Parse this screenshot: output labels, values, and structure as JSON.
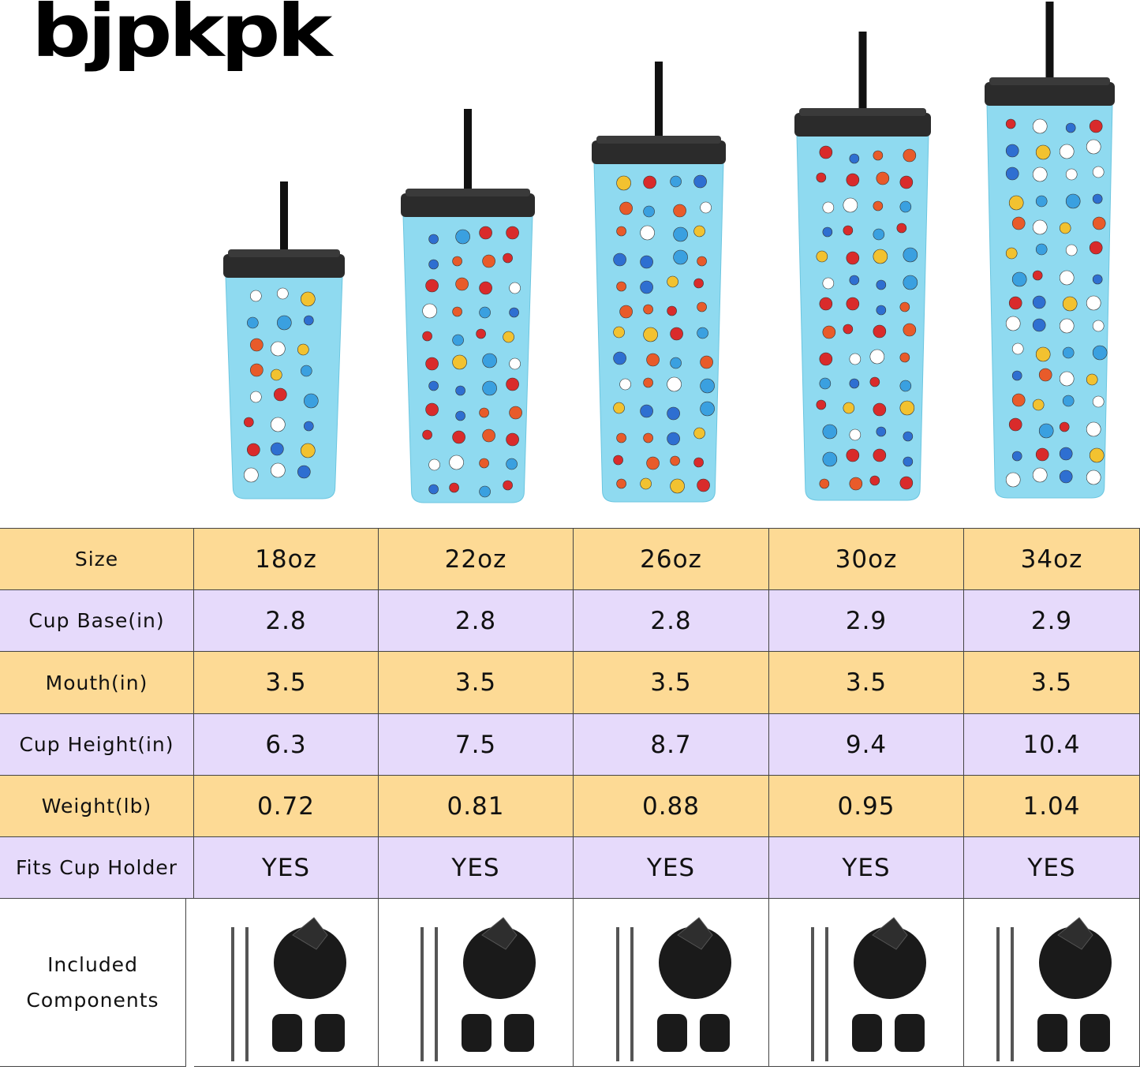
{
  "brand": "bjpkpk",
  "table": {
    "rows": [
      [
        "Size",
        "18oz",
        "22oz",
        "26oz",
        "30oz",
        "34oz"
      ],
      [
        "Cup Base(in)",
        "2.8",
        "2.8",
        "2.8",
        "2.9",
        "2.9"
      ],
      [
        "Mouth(in)",
        "3.5",
        "3.5",
        "3.5",
        "3.5",
        "3.5"
      ],
      [
        "Cup Height(in)",
        "6.3",
        "7.5",
        "8.7",
        "9.4",
        "10.4"
      ],
      [
        "Weight(lb)",
        "0.72",
        "0.81",
        "0.88",
        "0.95",
        "1.04"
      ],
      [
        "Fits Cup Holder",
        "YES",
        "YES",
        "YES",
        "YES",
        "YES"
      ],
      [
        "Included Components"
      ]
    ]
  }
}
